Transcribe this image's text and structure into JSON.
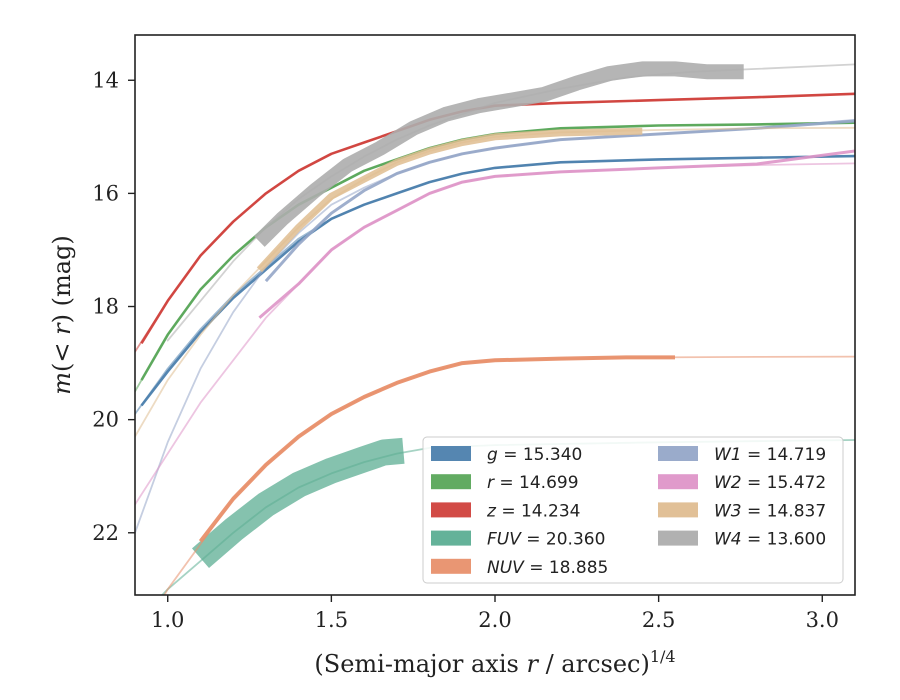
{
  "chart_data": {
    "type": "line",
    "xlabel_main": "(Semi-major axis ",
    "xlabel_var": "r",
    "xlabel_rest": " / arcsec)",
    "xlabel_sup": "1/4",
    "ylabel_m": "m",
    "ylabel_paren": "(< ",
    "ylabel_r": "r",
    "ylabel_end": ") (mag)",
    "xlim": [
      0.9,
      3.1
    ],
    "ylim": [
      23.1,
      13.2
    ],
    "y_inverted": true,
    "grid": false,
    "legend_placement": "lower-right",
    "x_ticks": [
      {
        "value": 1.0,
        "label": "1.0"
      },
      {
        "value": 1.5,
        "label": "1.5"
      },
      {
        "value": 2.0,
        "label": "2.0"
      },
      {
        "value": 2.5,
        "label": "2.5"
      },
      {
        "value": 3.0,
        "label": "3.0"
      }
    ],
    "y_ticks": [
      {
        "value": 14,
        "label": "14"
      },
      {
        "value": 16,
        "label": "16"
      },
      {
        "value": 18,
        "label": "18"
      },
      {
        "value": 20,
        "label": "20"
      },
      {
        "value": 22,
        "label": "22"
      }
    ],
    "series": [
      {
        "key": "g",
        "band": "g",
        "value_text": "15.340",
        "color": "#4c7fad",
        "model": [
          [
            0.9,
            19.9
          ],
          [
            1.0,
            19.1
          ],
          [
            1.1,
            18.4
          ],
          [
            1.2,
            17.8
          ],
          [
            1.3,
            17.3
          ],
          [
            1.4,
            16.8
          ],
          [
            1.5,
            16.45
          ],
          [
            1.6,
            16.2
          ],
          [
            1.7,
            16.0
          ],
          [
            1.8,
            15.8
          ],
          [
            1.9,
            15.65
          ],
          [
            2.0,
            15.55
          ],
          [
            2.2,
            15.45
          ],
          [
            2.5,
            15.4
          ],
          [
            2.8,
            15.37
          ],
          [
            3.1,
            15.34
          ]
        ],
        "obs": [
          [
            0.92,
            19.75
          ],
          [
            1.0,
            19.15
          ],
          [
            1.1,
            18.45
          ],
          [
            1.2,
            17.85
          ],
          [
            1.3,
            17.35
          ],
          [
            1.4,
            16.85
          ],
          [
            1.5,
            16.45
          ],
          [
            1.6,
            16.2
          ],
          [
            1.7,
            16.0
          ],
          [
            1.8,
            15.8
          ],
          [
            1.9,
            15.65
          ],
          [
            2.0,
            15.55
          ],
          [
            2.2,
            15.45
          ],
          [
            2.5,
            15.4
          ],
          [
            2.8,
            15.37
          ],
          [
            3.1,
            15.34
          ]
        ],
        "obs_width": 2.6,
        "obs_opacity": 0.95
      },
      {
        "key": "r",
        "band": "r",
        "value_text": "14.699",
        "color": "#5aa65a",
        "model": [
          [
            0.9,
            19.5
          ],
          [
            1.0,
            18.5
          ],
          [
            1.1,
            17.7
          ],
          [
            1.2,
            17.1
          ],
          [
            1.3,
            16.6
          ],
          [
            1.4,
            16.2
          ],
          [
            1.5,
            15.9
          ],
          [
            1.6,
            15.6
          ],
          [
            1.7,
            15.4
          ],
          [
            1.8,
            15.2
          ],
          [
            1.9,
            15.05
          ],
          [
            2.0,
            14.95
          ],
          [
            2.2,
            14.85
          ],
          [
            2.5,
            14.8
          ],
          [
            2.8,
            14.78
          ],
          [
            3.1,
            14.75
          ]
        ],
        "obs": [
          [
            0.92,
            19.3
          ],
          [
            1.0,
            18.5
          ],
          [
            1.1,
            17.7
          ],
          [
            1.2,
            17.1
          ],
          [
            1.3,
            16.6
          ],
          [
            1.4,
            16.2
          ],
          [
            1.5,
            15.9
          ],
          [
            1.6,
            15.6
          ],
          [
            1.7,
            15.4
          ],
          [
            1.8,
            15.2
          ],
          [
            1.9,
            15.05
          ],
          [
            2.0,
            14.95
          ],
          [
            2.2,
            14.85
          ],
          [
            2.5,
            14.8
          ],
          [
            2.8,
            14.78
          ],
          [
            3.1,
            14.75
          ]
        ],
        "obs_width": 2.6,
        "obs_opacity": 0.95
      },
      {
        "key": "z",
        "band": "z",
        "value_text": "14.234",
        "color": "#d0413c",
        "model": [
          [
            0.9,
            18.8
          ],
          [
            1.0,
            17.9
          ],
          [
            1.1,
            17.1
          ],
          [
            1.2,
            16.5
          ],
          [
            1.3,
            16.0
          ],
          [
            1.4,
            15.6
          ],
          [
            1.5,
            15.3
          ],
          [
            1.6,
            15.1
          ],
          [
            1.7,
            14.9
          ],
          [
            1.8,
            14.7
          ],
          [
            1.9,
            14.55
          ],
          [
            2.0,
            14.45
          ],
          [
            2.2,
            14.4
          ],
          [
            2.5,
            14.35
          ],
          [
            2.8,
            14.3
          ],
          [
            3.1,
            14.24
          ]
        ],
        "obs": [
          [
            0.92,
            18.65
          ],
          [
            1.0,
            17.9
          ],
          [
            1.1,
            17.1
          ],
          [
            1.2,
            16.5
          ],
          [
            1.3,
            16.0
          ],
          [
            1.4,
            15.6
          ],
          [
            1.5,
            15.3
          ],
          [
            1.6,
            15.1
          ],
          [
            1.7,
            14.9
          ],
          [
            1.8,
            14.7
          ],
          [
            1.9,
            14.55
          ],
          [
            2.0,
            14.45
          ],
          [
            2.2,
            14.4
          ],
          [
            2.5,
            14.35
          ],
          [
            2.8,
            14.3
          ],
          [
            3.1,
            14.24
          ]
        ],
        "obs_width": 2.6,
        "obs_opacity": 0.95
      },
      {
        "key": "FUV",
        "band": "FUV",
        "value_text": "20.360",
        "color": "#5cae93",
        "model": [
          [
            0.9,
            23.6
          ],
          [
            1.0,
            23.0
          ],
          [
            1.1,
            22.5
          ],
          [
            1.2,
            22.0
          ],
          [
            1.3,
            21.55
          ],
          [
            1.4,
            21.2
          ],
          [
            1.5,
            20.95
          ],
          [
            1.6,
            20.75
          ],
          [
            1.7,
            20.6
          ],
          [
            1.8,
            20.5
          ],
          [
            2.0,
            20.45
          ],
          [
            2.5,
            20.4
          ],
          [
            3.1,
            20.36
          ]
        ],
        "obs": [
          [
            1.1,
            22.45
          ],
          [
            1.2,
            21.95
          ],
          [
            1.3,
            21.5
          ],
          [
            1.4,
            21.15
          ],
          [
            1.5,
            20.9
          ],
          [
            1.6,
            20.7
          ],
          [
            1.66,
            20.58
          ],
          [
            1.72,
            20.55
          ]
        ],
        "obs_width": 26,
        "obs_opacity": 0.75
      },
      {
        "key": "NUV",
        "band": "NUV",
        "value_text": "18.885",
        "color": "#e8906c",
        "model": [
          [
            0.9,
            24.0
          ],
          [
            1.0,
            23.0
          ],
          [
            1.1,
            22.2
          ],
          [
            1.2,
            21.4
          ],
          [
            1.3,
            20.8
          ],
          [
            1.4,
            20.3
          ],
          [
            1.5,
            19.9
          ],
          [
            1.6,
            19.6
          ],
          [
            1.7,
            19.35
          ],
          [
            1.8,
            19.15
          ],
          [
            1.9,
            19.0
          ],
          [
            2.0,
            18.95
          ],
          [
            2.2,
            18.92
          ],
          [
            2.5,
            18.9
          ],
          [
            2.8,
            18.89
          ],
          [
            3.1,
            18.885
          ]
        ],
        "obs": [
          [
            1.1,
            22.15
          ],
          [
            1.2,
            21.4
          ],
          [
            1.3,
            20.8
          ],
          [
            1.4,
            20.3
          ],
          [
            1.5,
            19.9
          ],
          [
            1.6,
            19.6
          ],
          [
            1.7,
            19.35
          ],
          [
            1.8,
            19.15
          ],
          [
            1.9,
            19.0
          ],
          [
            2.0,
            18.95
          ],
          [
            2.2,
            18.92
          ],
          [
            2.4,
            18.9
          ],
          [
            2.55,
            18.9
          ]
        ],
        "obs_width": 4,
        "obs_opacity": 0.95
      },
      {
        "key": "W1",
        "band": "W1",
        "value_text": "14.719",
        "color": "#95a6c8",
        "model": [
          [
            0.9,
            22.0
          ],
          [
            1.0,
            20.4
          ],
          [
            1.1,
            19.1
          ],
          [
            1.2,
            18.1
          ],
          [
            1.3,
            17.3
          ],
          [
            1.4,
            16.7
          ],
          [
            1.5,
            16.2
          ],
          [
            1.6,
            15.9
          ],
          [
            1.7,
            15.65
          ],
          [
            1.8,
            15.45
          ],
          [
            1.9,
            15.3
          ],
          [
            2.0,
            15.2
          ],
          [
            2.2,
            15.05
          ],
          [
            2.5,
            14.95
          ],
          [
            2.8,
            14.85
          ],
          [
            3.1,
            14.7
          ]
        ],
        "obs": [
          [
            1.3,
            17.55
          ],
          [
            1.4,
            16.9
          ],
          [
            1.5,
            16.35
          ],
          [
            1.6,
            15.95
          ],
          [
            1.7,
            15.65
          ],
          [
            1.8,
            15.45
          ],
          [
            1.9,
            15.3
          ],
          [
            2.0,
            15.2
          ],
          [
            2.2,
            15.05
          ],
          [
            2.5,
            14.95
          ],
          [
            2.8,
            14.85
          ],
          [
            3.1,
            14.72
          ]
        ],
        "obs_width": 3,
        "obs_opacity": 0.9
      },
      {
        "key": "W2",
        "band": "W2",
        "value_text": "15.472",
        "color": "#de95c8",
        "model": [
          [
            0.9,
            21.5
          ],
          [
            1.0,
            20.6
          ],
          [
            1.1,
            19.7
          ],
          [
            1.2,
            18.95
          ],
          [
            1.3,
            18.2
          ],
          [
            1.4,
            17.6
          ],
          [
            1.5,
            17.0
          ],
          [
            1.6,
            16.6
          ],
          [
            1.7,
            16.3
          ],
          [
            1.8,
            16.0
          ],
          [
            1.9,
            15.8
          ],
          [
            2.0,
            15.7
          ],
          [
            2.2,
            15.62
          ],
          [
            2.5,
            15.55
          ],
          [
            2.8,
            15.5
          ],
          [
            3.1,
            15.47
          ]
        ],
        "obs": [
          [
            1.28,
            18.2
          ],
          [
            1.4,
            17.6
          ],
          [
            1.5,
            17.0
          ],
          [
            1.6,
            16.6
          ],
          [
            1.7,
            16.3
          ],
          [
            1.8,
            16.0
          ],
          [
            1.9,
            15.8
          ],
          [
            2.0,
            15.7
          ],
          [
            2.2,
            15.62
          ],
          [
            2.5,
            15.55
          ],
          [
            2.8,
            15.48
          ],
          [
            3.1,
            15.25
          ]
        ],
        "obs_width": 3,
        "obs_opacity": 0.9
      },
      {
        "key": "W3",
        "band": "W3",
        "value_text": "14.837",
        "color": "#dfbd91",
        "model": [
          [
            0.9,
            20.3
          ],
          [
            1.0,
            19.3
          ],
          [
            1.1,
            18.5
          ],
          [
            1.2,
            17.8
          ],
          [
            1.3,
            17.2
          ],
          [
            1.4,
            16.6
          ],
          [
            1.5,
            16.1
          ],
          [
            1.6,
            15.75
          ],
          [
            1.7,
            15.45
          ],
          [
            1.8,
            15.25
          ],
          [
            1.9,
            15.1
          ],
          [
            2.0,
            15.0
          ],
          [
            2.2,
            14.92
          ],
          [
            2.5,
            14.88
          ],
          [
            2.8,
            14.85
          ],
          [
            3.1,
            14.84
          ]
        ],
        "obs": [
          [
            1.28,
            17.35
          ],
          [
            1.4,
            16.6
          ],
          [
            1.5,
            16.05
          ],
          [
            1.6,
            15.75
          ],
          [
            1.7,
            15.45
          ],
          [
            1.8,
            15.25
          ],
          [
            1.9,
            15.1
          ],
          [
            2.0,
            15.0
          ],
          [
            2.2,
            14.93
          ],
          [
            2.45,
            14.9
          ]
        ],
        "obs_width": 7,
        "obs_opacity": 0.85
      },
      {
        "key": "W4",
        "band": "W4",
        "value_text": "13.600",
        "color": "#adadad",
        "model": [
          [
            1.0,
            18.6
          ],
          [
            1.1,
            17.9
          ],
          [
            1.2,
            17.2
          ],
          [
            1.3,
            16.6
          ],
          [
            1.4,
            16.1
          ],
          [
            1.5,
            15.7
          ],
          [
            1.6,
            15.35
          ],
          [
            1.7,
            15.05
          ],
          [
            1.8,
            14.8
          ],
          [
            1.9,
            14.6
          ],
          [
            2.0,
            14.4
          ],
          [
            2.2,
            14.15
          ],
          [
            2.4,
            13.95
          ],
          [
            2.6,
            13.85
          ],
          [
            2.8,
            13.8
          ],
          [
            3.1,
            13.72
          ]
        ],
        "obs": [
          [
            1.28,
            16.85
          ],
          [
            1.35,
            16.45
          ],
          [
            1.45,
            15.95
          ],
          [
            1.55,
            15.5
          ],
          [
            1.65,
            15.2
          ],
          [
            1.75,
            14.85
          ],
          [
            1.85,
            14.6
          ],
          [
            1.95,
            14.45
          ],
          [
            2.05,
            14.35
          ],
          [
            2.15,
            14.25
          ],
          [
            2.25,
            14.05
          ],
          [
            2.35,
            13.88
          ],
          [
            2.45,
            13.8
          ],
          [
            2.55,
            13.8
          ],
          [
            2.65,
            13.85
          ],
          [
            2.76,
            13.85
          ]
        ],
        "obs_width": 15,
        "obs_opacity": 0.9
      }
    ],
    "legend_order_col1": [
      "g",
      "r",
      "z",
      "FUV",
      "NUV"
    ],
    "legend_order_col2": [
      "W1",
      "W2",
      "W3",
      "W4"
    ]
  }
}
